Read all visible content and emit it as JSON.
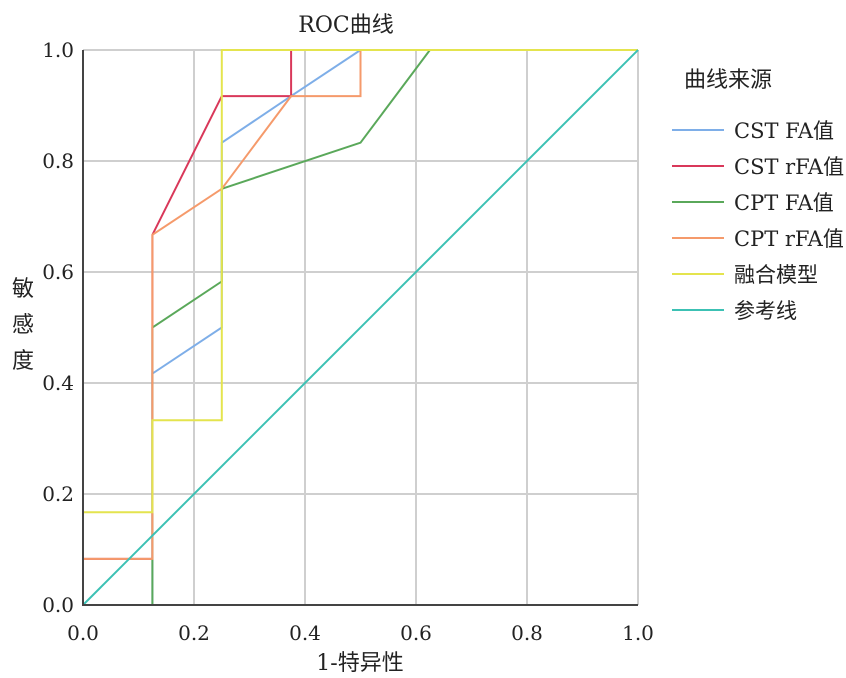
{
  "chart_data": {
    "type": "line",
    "title": "ROC曲线",
    "xlabel": "1-特异性",
    "ylabel": "敏感度",
    "xlim": [
      0,
      1
    ],
    "ylim": [
      0,
      1
    ],
    "xticks": [
      "0.0",
      "0.2",
      "0.4",
      "0.6",
      "0.8",
      "1.0"
    ],
    "yticks": [
      "0.0",
      "0.2",
      "0.4",
      "0.6",
      "0.8",
      "1.0"
    ],
    "grid": true,
    "legend_title": "曲线来源",
    "legend_position": "right",
    "series": [
      {
        "name": "CST FA值",
        "color": "#7eaee8",
        "x": [
          0,
          0,
          0.125,
          0.125,
          0.125,
          0.25,
          0.25,
          0.375,
          0.5,
          1.0
        ],
        "y": [
          0,
          0,
          0,
          0.333,
          0.417,
          0.5,
          0.833,
          0.917,
          1.0,
          1.0
        ]
      },
      {
        "name": "CST rFA值",
        "color": "#d9385a",
        "x": [
          0,
          0,
          0.125,
          0.125,
          0.125,
          0.25,
          0.375,
          0.375,
          1.0
        ],
        "y": [
          0,
          0.083,
          0.083,
          0.333,
          0.667,
          0.917,
          0.917,
          1.0,
          1.0
        ]
      },
      {
        "name": "CPT FA值",
        "color": "#5aa85a",
        "x": [
          0,
          0.125,
          0.125,
          0.125,
          0.25,
          0.25,
          0.5,
          0.625,
          1.0
        ],
        "y": [
          0,
          0,
          0.333,
          0.5,
          0.583,
          0.75,
          0.833,
          1.0,
          1.0
        ]
      },
      {
        "name": "CPT rFA值",
        "color": "#f59a6b",
        "x": [
          0,
          0,
          0.125,
          0.125,
          0.25,
          0.375,
          0.5,
          0.5,
          1.0
        ],
        "y": [
          0,
          0.083,
          0.083,
          0.667,
          0.75,
          0.917,
          0.917,
          1.0,
          1.0
        ]
      },
      {
        "name": "融合模型",
        "color": "#e4e44e",
        "x": [
          0,
          0,
          0.125,
          0.125,
          0.25,
          0.25,
          1.0
        ],
        "y": [
          0,
          0.167,
          0.167,
          0.333,
          0.333,
          1.0,
          1.0
        ]
      },
      {
        "name": "参考线",
        "color": "#3cc1b4",
        "x": [
          0,
          1.0
        ],
        "y": [
          0,
          1.0
        ]
      }
    ]
  }
}
